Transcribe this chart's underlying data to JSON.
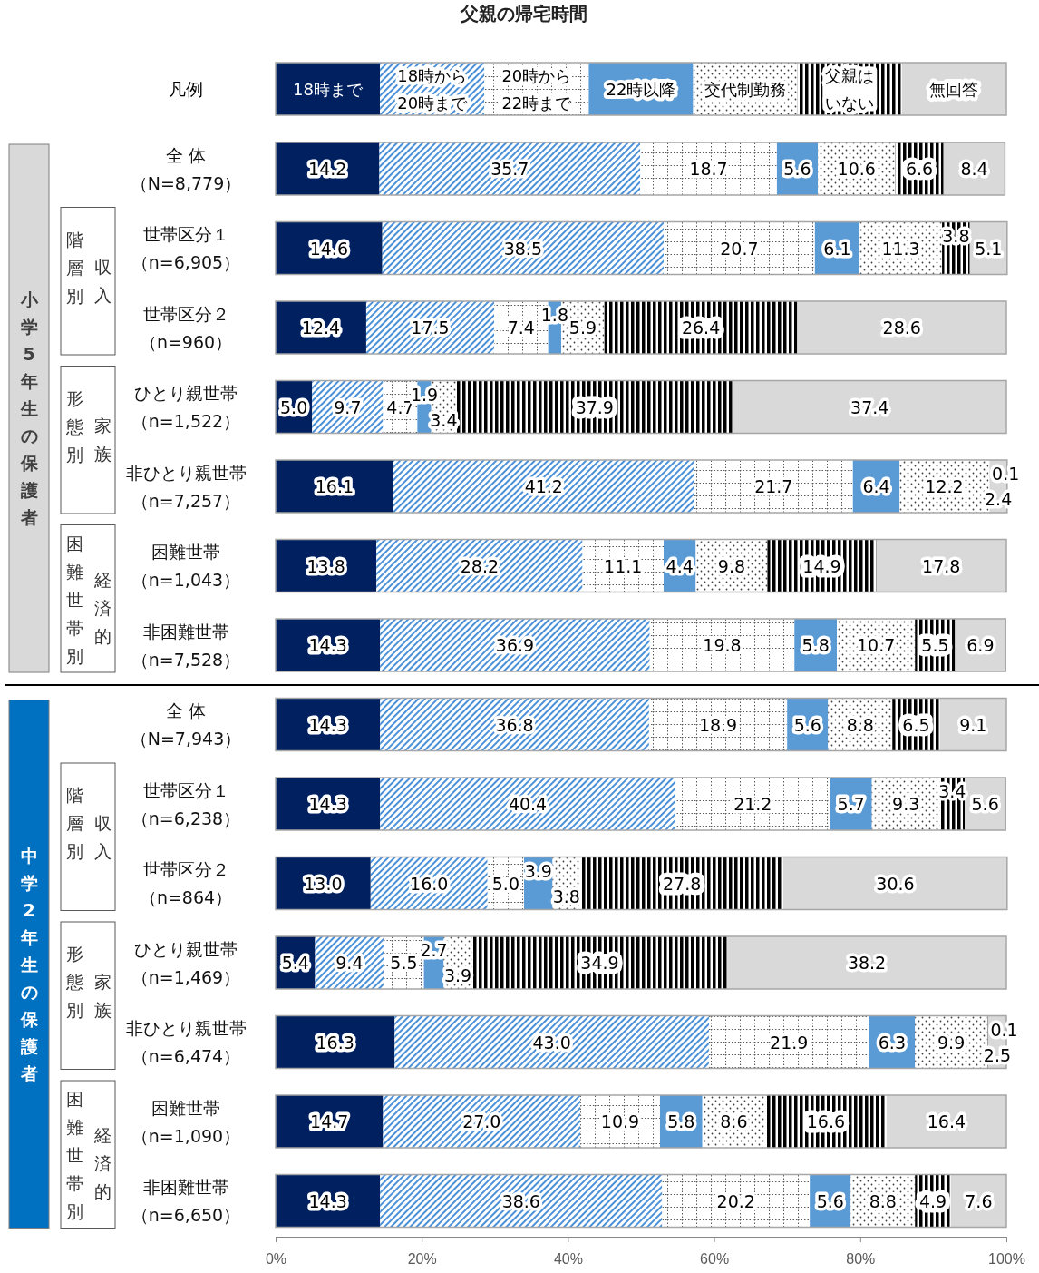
{
  "chart_data": {
    "type": "bar",
    "orientation": "horizontal",
    "stacked": true,
    "title": "父親の帰宅時間",
    "legend": "top",
    "legend_title": "凡例",
    "categories": [
      "全 体（N=8,779）",
      "世帯区分１（n=6,905）",
      "世帯区分２（n=960）",
      "ひとり親世帯（n=1,522）",
      "非ひとり親世帯（n=7,257）",
      "困難世帯（n=1,043）",
      "非困難世帯（n=7,528）",
      "全 体（N=7,943）",
      "世帯区分１（n=6,238）",
      "世帯区分２（n=864）",
      "ひとり親世帯（n=1,469）",
      "非ひとり親世帯（n=6,474）",
      "困難世帯（n=1,090）",
      "非困難世帯（n=6,650）"
    ],
    "xlim": [
      0,
      100
    ],
    "xticks": [
      {
        "value": 0,
        "label": "0%"
      },
      {
        "value": 20,
        "label": "20%"
      },
      {
        "value": 40,
        "label": "40%"
      },
      {
        "value": 60,
        "label": "60%"
      },
      {
        "value": 80,
        "label": "80%"
      },
      {
        "value": 100,
        "label": "100%"
      }
    ],
    "series": [
      {
        "name": "18時まで",
        "color": "#002060",
        "values": [
          14.2,
          14.6,
          12.4,
          5.0,
          16.1,
          13.8,
          14.3,
          14.3,
          14.3,
          13.0,
          5.4,
          16.3,
          14.7,
          14.3
        ],
        "value_labels": [
          "14.2",
          "14.6",
          "12.4",
          "5.0",
          "16.1",
          "13.8",
          "14.3",
          "14.3",
          "14.3",
          "13.0",
          "5.4",
          "16.3",
          "14.7",
          "14.3"
        ]
      },
      {
        "name": "18時から20時まで",
        "color": "#4a90d9",
        "values": [
          35.7,
          38.5,
          17.5,
          9.7,
          41.2,
          28.2,
          36.9,
          36.8,
          40.4,
          16.0,
          9.4,
          43.0,
          27.0,
          38.6
        ],
        "value_labels": [
          "35.7",
          "38.5",
          "17.5",
          "9.7",
          "41.2",
          "28.2",
          "36.9",
          "36.8",
          "40.4",
          "16.0",
          "9.4",
          "43.0",
          "27.0",
          "38.6"
        ]
      },
      {
        "name": "20時から22時まで",
        "color": "#595959",
        "values": [
          18.7,
          20.7,
          7.4,
          4.7,
          21.7,
          11.1,
          19.8,
          18.9,
          21.2,
          5.0,
          5.5,
          21.9,
          10.9,
          20.2
        ],
        "value_labels": [
          "18.7",
          "20.7",
          "7.4",
          "4.7",
          "21.7",
          "11.1",
          "19.8",
          "18.9",
          "21.2",
          "5.0",
          "5.5",
          "21.9",
          "10.9",
          "20.2"
        ]
      },
      {
        "name": "22時以降",
        "color": "#5b9bd5",
        "values": [
          5.6,
          6.1,
          1.8,
          1.9,
          6.4,
          4.4,
          5.8,
          5.6,
          5.7,
          3.9,
          2.7,
          6.3,
          5.8,
          5.6
        ],
        "value_labels": [
          "5.6",
          "6.1",
          "1.8",
          "1.9",
          "6.4",
          "4.4",
          "5.8",
          "5.6",
          "5.7",
          "3.9",
          "2.7",
          "6.3",
          "5.8",
          "5.6"
        ]
      },
      {
        "name": "交代制勤務",
        "color": "#404040",
        "values": [
          10.6,
          11.3,
          5.9,
          3.4,
          12.2,
          9.8,
          10.7,
          8.8,
          9.3,
          3.8,
          3.9,
          9.9,
          8.6,
          8.8
        ],
        "value_labels": [
          "10.6",
          "11.3",
          "5.9",
          "3.4",
          "12.2",
          "9.8",
          "10.7",
          "8.8",
          "9.3",
          "3.8",
          "3.9",
          "9.9",
          "8.6",
          "8.8"
        ]
      },
      {
        "name": "父親はいない",
        "color": "#000000",
        "values": [
          6.6,
          3.8,
          26.4,
          37.9,
          0.1,
          14.9,
          5.5,
          6.5,
          3.4,
          27.8,
          34.9,
          0.1,
          16.6,
          4.9
        ],
        "value_labels": [
          "6.6",
          "3.8",
          "26.4",
          "37.9",
          "0.1",
          "14.9",
          "5.5",
          "6.5",
          "3.4",
          "27.8",
          "34.9",
          "0.1",
          "16.6",
          "4.9"
        ]
      },
      {
        "name": "無回答",
        "color": "#d9d9d9",
        "values": [
          8.4,
          5.1,
          28.6,
          37.4,
          2.4,
          17.8,
          6.9,
          9.1,
          5.6,
          30.6,
          38.2,
          2.5,
          16.4,
          7.6
        ],
        "value_labels": [
          "8.4",
          "5.1",
          "28.6",
          "37.4",
          "2.4",
          "17.8",
          "6.9",
          "9.1",
          "5.6",
          "30.6",
          "38.2",
          "2.5",
          "16.4",
          "7.6"
        ]
      }
    ],
    "annotations": [
      "小学5年生の保護者",
      "収入階層別",
      "家族形態別",
      "経済的",
      "困難世帯別",
      "中学2年生の保護者",
      "収入階層別",
      "家族形態別",
      "経済的",
      "困難世帯別"
    ]
  }
}
